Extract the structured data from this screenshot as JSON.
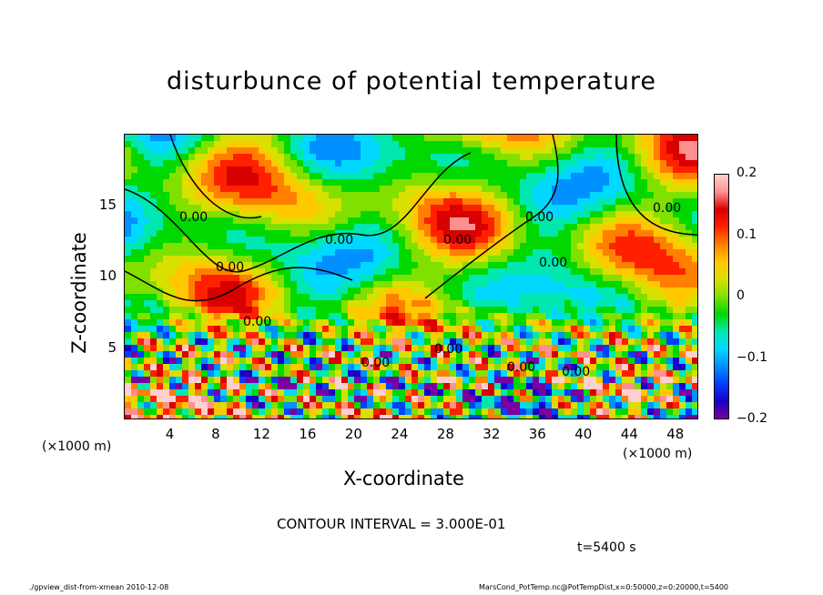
{
  "chart_data": {
    "type": "heatmap",
    "title": "disturbunce of potential temperature",
    "xlabel": "X-coordinate",
    "ylabel": "Z-coordinate",
    "x_unit_label": "(×1000 m)",
    "xlim": [
      0,
      50
    ],
    "ylim": [
      0,
      20
    ],
    "x_ticks": [
      "4",
      "8",
      "12",
      "16",
      "20",
      "24",
      "28",
      "32",
      "36",
      "40",
      "44",
      "48"
    ],
    "x_tick_values": [
      4,
      8,
      12,
      16,
      20,
      24,
      28,
      32,
      36,
      40,
      44,
      48
    ],
    "y_ticks": [
      "5",
      "10",
      "15"
    ],
    "y_tick_values": [
      5,
      10,
      15
    ],
    "colorbar": {
      "range": [
        -0.2,
        0.2
      ],
      "tick_labels": [
        "0.2",
        "0.1",
        "0",
        "−0.1",
        "−0.2"
      ],
      "tick_values": [
        0.2,
        0.1,
        0,
        -0.1,
        -0.2
      ],
      "colors": [
        "#7a00a0",
        "#1a00c8",
        "#0040ff",
        "#0090ff",
        "#00d8ff",
        "#00e8b0",
        "#00d800",
        "#80e000",
        "#d8e000",
        "#ffc800",
        "#ff8000",
        "#ff2000",
        "#d80000",
        "#ff9090",
        "#ffd0d0"
      ]
    },
    "contour_labels": [
      "0.00",
      "0.00",
      "0.00",
      "0.00",
      "0.00",
      "0.00",
      "0.00",
      "0.00",
      "0.00",
      "0.00",
      "0.00",
      "0.00"
    ],
    "contour_interval": "CONTOUR INTERVAL = 3.000E-01",
    "time": "t=5400 s"
  },
  "footer": {
    "left": "./gpview_dist-from-xmean  2010-12-08",
    "right": "MarsCond_PotTemp.nc@PotTempDist,x=0:50000,z=0:20000,t=5400"
  }
}
